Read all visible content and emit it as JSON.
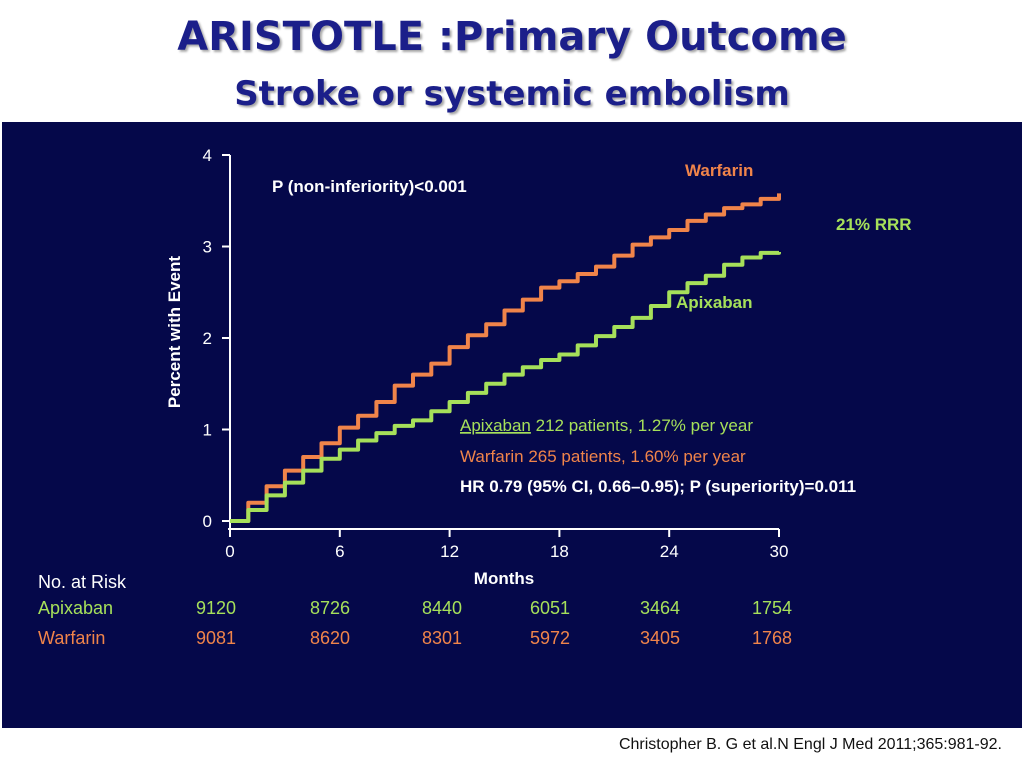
{
  "slide": {
    "title": "ARISTOTLE :Primary Outcome",
    "subtitle": "Stroke or systemic embolism",
    "citation": "Christopher B. G et al.N Engl J Med 2011;365:981-92."
  },
  "colors": {
    "background": "#05084a",
    "apixaban": "#a6e05a",
    "warfarin": "#f0844a",
    "text": "#ffffff",
    "title": "#1b1f8a"
  },
  "annotations": {
    "p_noninferiority": "P (non-inferiority)<0.001",
    "rrr": "21% RRR",
    "stats_apixaban_name": "Apixaban",
    "stats_apixaban_rest": " 212 patients,  1.27% per year",
    "stats_warfarin": "Warfarin   265 patients,  1.60% per year",
    "stats_hr": "HR 0.79  (95% CI, 0.66–0.95);  P (superiority)=0.011"
  },
  "risk_table": {
    "header": "No. at Risk",
    "rows": [
      {
        "name": "Apixaban",
        "values": [
          "9120",
          "8726",
          "8440",
          "6051",
          "3464",
          "1754"
        ]
      },
      {
        "name": "Warfarin",
        "values": [
          "9081",
          "8620",
          "8301",
          "5972",
          "3405",
          "1768"
        ]
      }
    ]
  },
  "chart_data": {
    "type": "line",
    "xlabel": "Months",
    "ylabel": "Percent with Event",
    "xlim": [
      0,
      30
    ],
    "ylim": [
      0,
      4
    ],
    "xticks": [
      "0",
      "6",
      "12",
      "18",
      "24",
      "30"
    ],
    "yticks": [
      "0",
      "1",
      "2",
      "3",
      "4"
    ],
    "grid": false,
    "series": [
      {
        "name": "Warfarin",
        "x": [
          0,
          1,
          2,
          3,
          4,
          5,
          6,
          7,
          8,
          9,
          10,
          11,
          12,
          13,
          14,
          15,
          16,
          17,
          18,
          19,
          20,
          21,
          22,
          23,
          24,
          25,
          26,
          27,
          28,
          29,
          30
        ],
        "y": [
          0,
          0.2,
          0.38,
          0.55,
          0.7,
          0.85,
          1.02,
          1.15,
          1.3,
          1.48,
          1.6,
          1.72,
          1.9,
          2.03,
          2.15,
          2.3,
          2.42,
          2.55,
          2.62,
          2.7,
          2.78,
          2.9,
          3.02,
          3.1,
          3.18,
          3.28,
          3.35,
          3.42,
          3.46,
          3.52,
          3.58
        ]
      },
      {
        "name": "Apixaban",
        "x": [
          0,
          1,
          2,
          3,
          4,
          5,
          6,
          7,
          8,
          9,
          10,
          11,
          12,
          13,
          14,
          15,
          16,
          17,
          18,
          19,
          20,
          21,
          22,
          23,
          24,
          25,
          26,
          27,
          28,
          29,
          30
        ],
        "y": [
          0,
          0.12,
          0.28,
          0.42,
          0.55,
          0.68,
          0.78,
          0.88,
          0.96,
          1.04,
          1.1,
          1.2,
          1.3,
          1.4,
          1.5,
          1.6,
          1.68,
          1.76,
          1.82,
          1.92,
          2.02,
          2.12,
          2.22,
          2.35,
          2.5,
          2.6,
          2.68,
          2.8,
          2.88,
          2.93,
          2.94
        ]
      }
    ]
  }
}
